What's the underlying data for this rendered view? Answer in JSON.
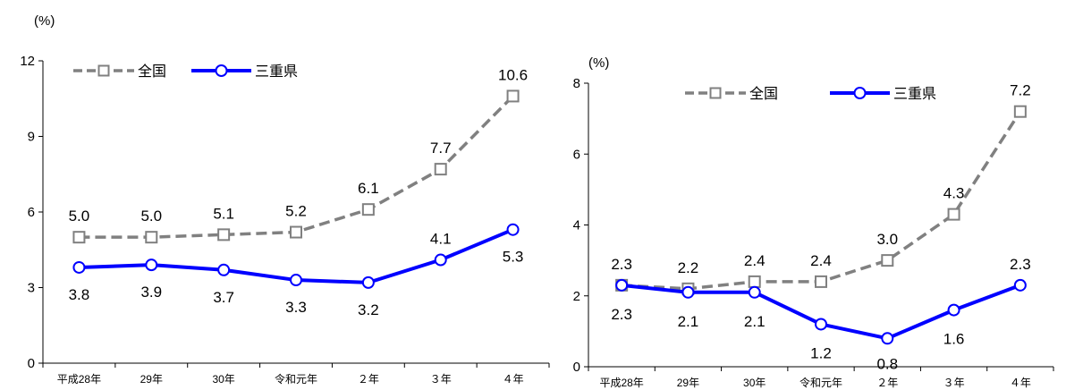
{
  "chart_data": [
    {
      "type": "line",
      "unit_label": "(%)",
      "categories": [
        "平成28年",
        "29年",
        "30年",
        "令和元年",
        "２年",
        "３年",
        "４年"
      ],
      "ylim": [
        0,
        12
      ],
      "yticks": [
        "0",
        "3",
        "6",
        "9",
        "12"
      ],
      "legend_position": "top-left",
      "grid": false,
      "series": [
        {
          "name": "全国",
          "values": [
            5.0,
            5.0,
            5.1,
            5.2,
            6.1,
            7.7,
            10.6
          ],
          "labels": [
            "5.0",
            "5.0",
            "5.1",
            "5.2",
            "6.1",
            "7.7",
            "10.6"
          ],
          "color": "#808080",
          "style": "dashed",
          "marker": "square"
        },
        {
          "name": "三重県",
          "values": [
            3.8,
            3.9,
            3.7,
            3.3,
            3.2,
            4.1,
            5.3
          ],
          "labels": [
            "3.8",
            "3.9",
            "3.7",
            "3.3",
            "3.2",
            "4.1",
            "5.3"
          ],
          "color": "#0000ff",
          "style": "solid",
          "marker": "circle"
        }
      ]
    },
    {
      "type": "line",
      "unit_label": "(%)",
      "categories": [
        "平成28年",
        "29年",
        "30年",
        "令和元年",
        "２年",
        "３年",
        "４年"
      ],
      "ylim": [
        0,
        8
      ],
      "yticks": [
        "0",
        "2",
        "4",
        "6",
        "8"
      ],
      "legend_position": "top-center",
      "grid": false,
      "series": [
        {
          "name": "全国",
          "values": [
            2.3,
            2.2,
            2.4,
            2.4,
            3.0,
            4.3,
            7.2
          ],
          "labels": [
            "2.3",
            "2.2",
            "2.4",
            "2.4",
            "3.0",
            "4.3",
            "7.2"
          ],
          "color": "#808080",
          "style": "dashed",
          "marker": "square"
        },
        {
          "name": "三重県",
          "values": [
            2.3,
            2.1,
            2.1,
            1.2,
            0.8,
            1.6,
            2.3
          ],
          "labels": [
            "2.3",
            "2.1",
            "2.1",
            "1.2",
            "0.8",
            "1.6",
            "2.3"
          ],
          "color": "#0000ff",
          "style": "solid",
          "marker": "circle"
        }
      ]
    }
  ]
}
